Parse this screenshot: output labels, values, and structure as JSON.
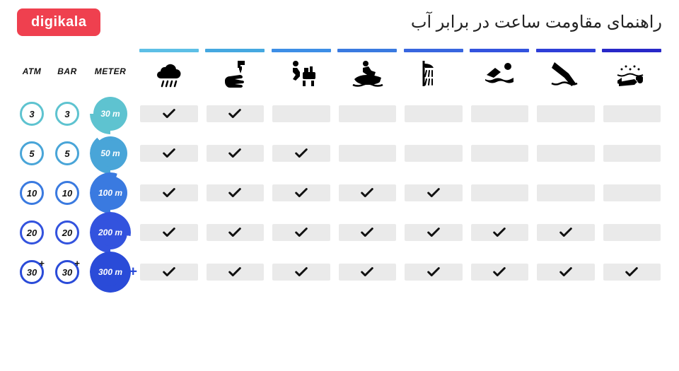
{
  "logo": {
    "text": "digikala",
    "bg": "#ef404f"
  },
  "title": "راهنمای مقاومت ساعت در برابر آب",
  "unit_headers": [
    "ATM",
    "BAR",
    "METER"
  ],
  "activity_colors": [
    "#5dbfe6",
    "#45a8e0",
    "#3d8ee6",
    "#3a7ae0",
    "#3866df",
    "#3353de",
    "#2e3fd8",
    "#2828c8"
  ],
  "activities": [
    "rain",
    "hand-wash",
    "bathing",
    "jetski",
    "shower",
    "swimming",
    "snorkeling",
    "scuba"
  ],
  "rows": [
    {
      "atm": "3",
      "bar": "3",
      "meter": "30 m",
      "circle_color": "#5ec3d0",
      "meter_bg": "#5ec3d0",
      "arc_deg": 90,
      "checks": [
        true,
        true,
        false,
        false,
        false,
        false,
        false,
        false
      ]
    },
    {
      "atm": "5",
      "bar": "5",
      "meter": "50 m",
      "circle_color": "#49a5d8",
      "meter_bg": "#49a5d8",
      "arc_deg": 140,
      "checks": [
        true,
        true,
        true,
        false,
        false,
        false,
        false,
        false
      ]
    },
    {
      "atm": "10",
      "bar": "10",
      "meter": "100 m",
      "circle_color": "#3a7ae0",
      "meter_bg": "#3a7ae0",
      "arc_deg": 200,
      "checks": [
        true,
        true,
        true,
        true,
        true,
        false,
        false,
        false
      ]
    },
    {
      "atm": "20",
      "bar": "20",
      "meter": "200 m",
      "circle_color": "#3353de",
      "meter_bg": "#3353de",
      "arc_deg": 280,
      "checks": [
        true,
        true,
        true,
        true,
        true,
        true,
        true,
        false
      ]
    },
    {
      "atm": "30",
      "bar": "30",
      "meter": "300 m",
      "circle_color": "#2a4bd8",
      "meter_bg": "#2a4bd8",
      "arc_deg": 360,
      "plus": true,
      "checks": [
        true,
        true,
        true,
        true,
        true,
        true,
        true,
        true
      ]
    }
  ],
  "colors": {
    "cell_bg": "#eaeaea",
    "check": "#111111",
    "page_bg": "#ffffff"
  },
  "icon_size": 48
}
